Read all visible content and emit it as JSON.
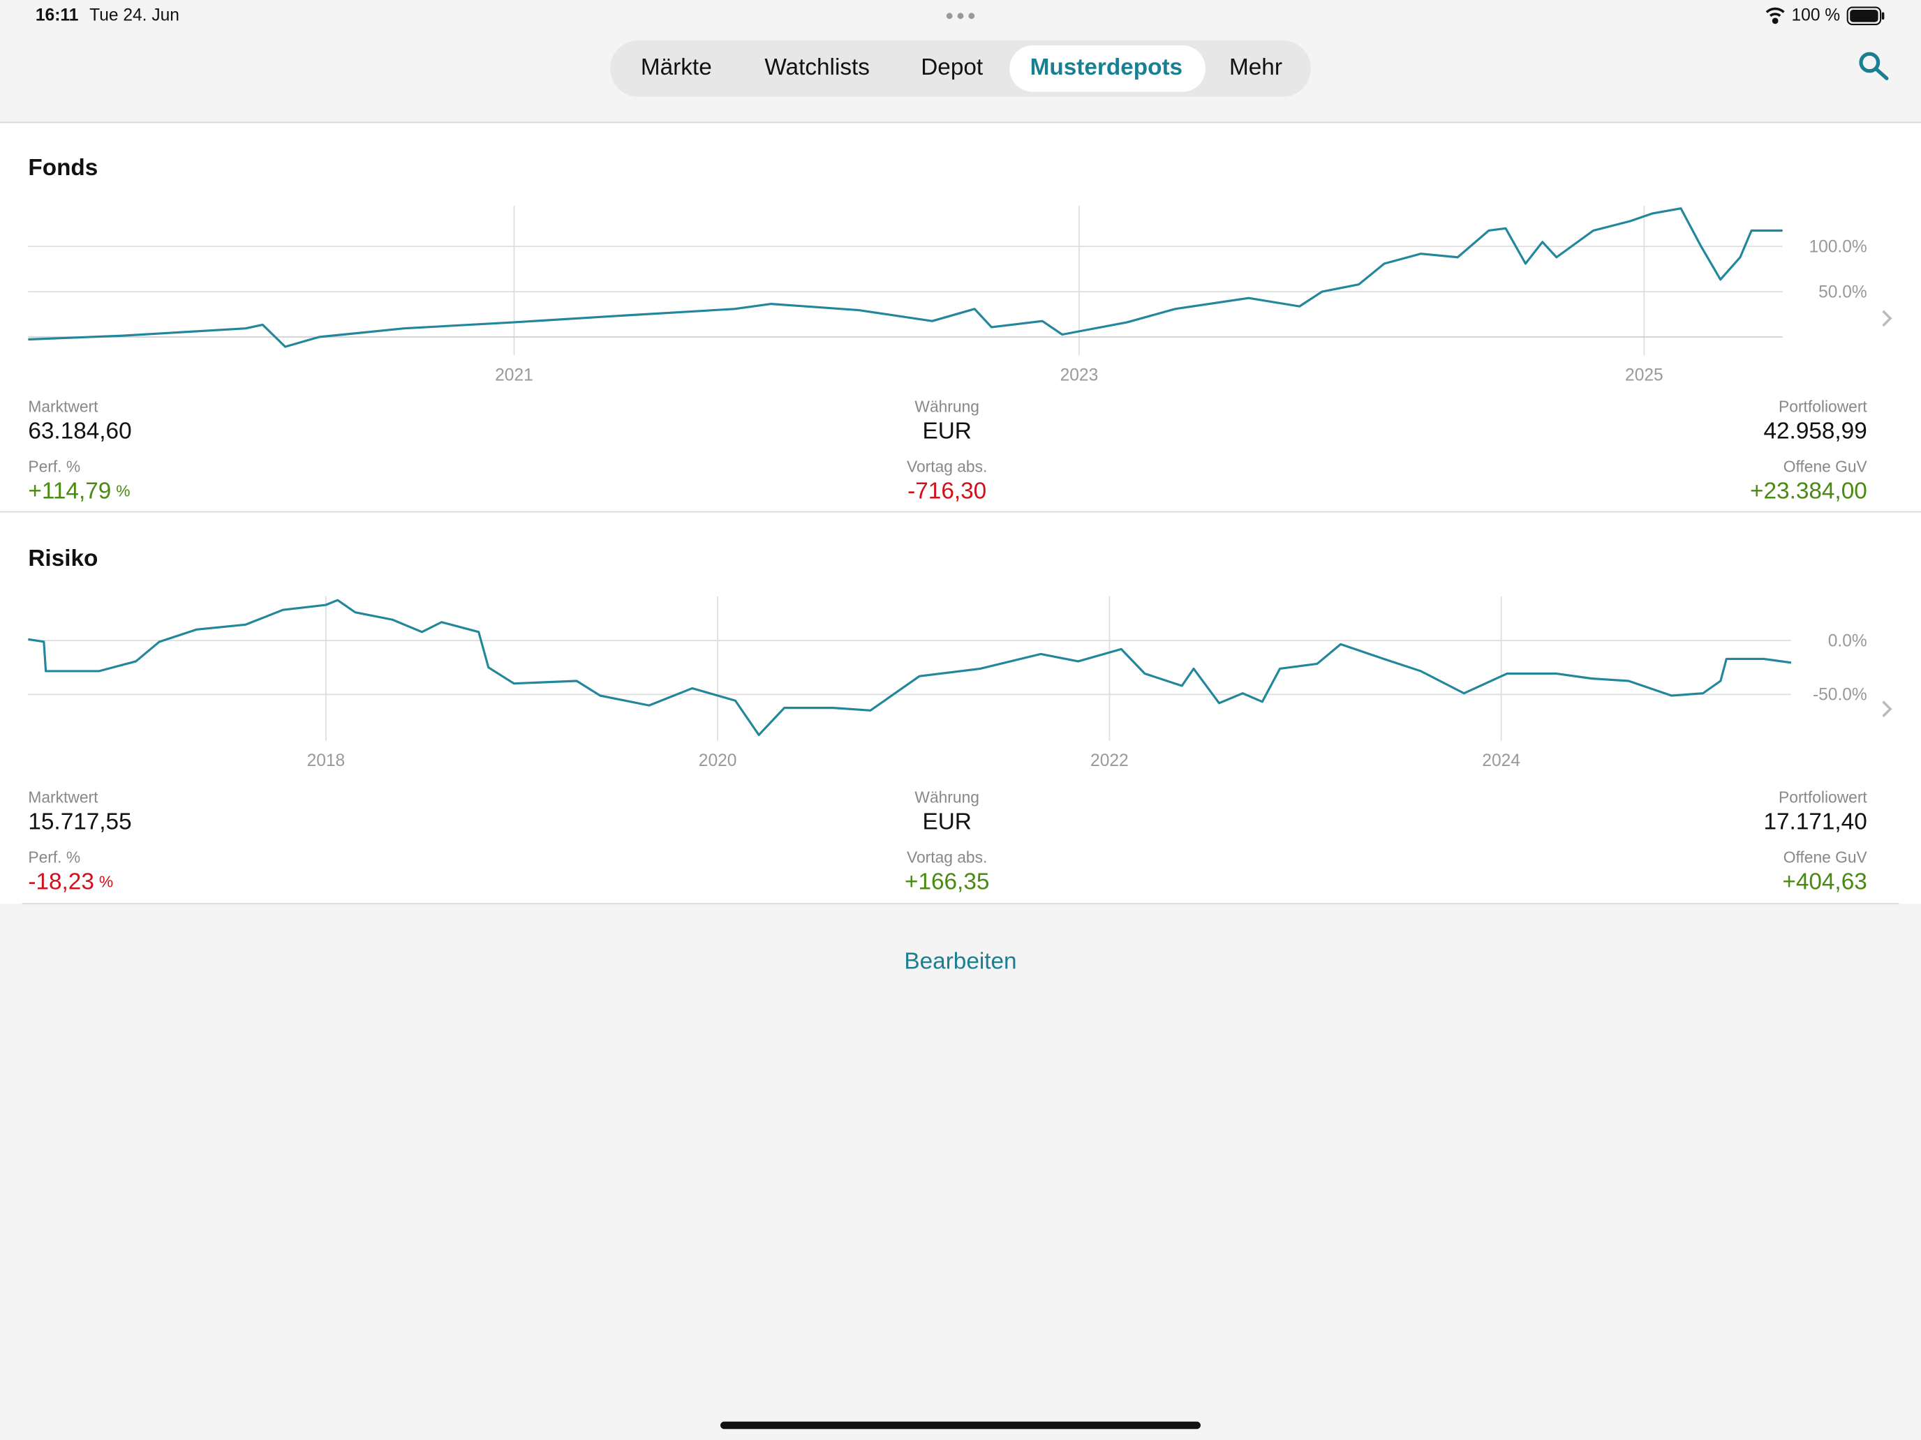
{
  "status_bar": {
    "time": "16:11",
    "date": "Tue 24. Jun",
    "battery": "100 %"
  },
  "tabs": [
    "Märkte",
    "Watchlists",
    "Depot",
    "Musterdepots",
    "Mehr"
  ],
  "active_tab": 3,
  "chart_data": [
    {
      "type": "line",
      "title": "Fonds",
      "color": "#23879c",
      "x": [
        2019.28,
        2019.61,
        2020.05,
        2020.11,
        2020.19,
        2020.31,
        2020.61,
        2021.0,
        2021.35,
        2021.78,
        2021.91,
        2022.22,
        2022.48,
        2022.63,
        2022.69,
        2022.87,
        2022.94,
        2023.17,
        2023.34,
        2023.6,
        2023.78,
        2023.86,
        2023.99,
        2024.08,
        2024.21,
        2024.34,
        2024.45,
        2024.51,
        2024.58,
        2024.64,
        2024.69,
        2024.82,
        2024.95,
        2025.03,
        2025.13,
        2025.2,
        2025.27,
        2025.34,
        2025.38,
        2025.49
      ],
      "values": [
        -2.7,
        1.4,
        9.5,
        13.5,
        -10.8,
        0,
        9.5,
        16.2,
        23,
        31,
        36.5,
        29.7,
        17.6,
        31,
        10.8,
        17.6,
        2.7,
        16.2,
        31,
        43,
        33.8,
        50,
        58,
        81,
        92,
        88,
        117.5,
        120,
        81,
        105,
        88,
        117.5,
        128,
        136.5,
        142,
        101,
        63.5,
        88,
        117.5,
        117.5
      ],
      "xlim": [
        2019.28,
        2025.49
      ],
      "xticks": [
        2021,
        2023,
        2025
      ],
      "ylim": [
        -20,
        145
      ],
      "yticks": [
        {
          "value": 50,
          "label": "50.0%"
        },
        {
          "value": 100,
          "label": "100.0%"
        }
      ],
      "grid": true
    },
    {
      "type": "line",
      "title": "Risiko",
      "color": "#23879c",
      "x": [
        2016.48,
        2016.56,
        2016.57,
        2016.84,
        2017.03,
        2017.15,
        2017.34,
        2017.59,
        2017.78,
        2018.0,
        2018.06,
        2018.15,
        2018.34,
        2018.49,
        2018.59,
        2018.78,
        2018.83,
        2018.96,
        2019.28,
        2019.4,
        2019.65,
        2019.87,
        2020.09,
        2020.21,
        2020.34,
        2020.59,
        2020.78,
        2021.03,
        2021.34,
        2021.65,
        2021.84,
        2022.06,
        2022.18,
        2022.37,
        2022.43,
        2022.56,
        2022.68,
        2022.78,
        2022.87,
        2023.06,
        2023.18,
        2023.4,
        2023.59,
        2023.81,
        2024.03,
        2024.28,
        2024.46,
        2024.65,
        2024.87,
        2025.03,
        2025.12,
        2025.15,
        2025.34,
        2025.48
      ],
      "values": [
        1.1,
        -1.1,
        -28.4,
        -28.4,
        -19.3,
        -1.1,
        10.2,
        14.8,
        28.4,
        33,
        37.5,
        26.1,
        19.3,
        8,
        17,
        8,
        -25,
        -39.8,
        -37.5,
        -51.1,
        -60.2,
        -44.3,
        -55.7,
        -87.5,
        -62.5,
        -62.5,
        -64.8,
        -33,
        -26.1,
        -12.5,
        -19.3,
        -8,
        -30.7,
        -42,
        -26.1,
        -58,
        -48.9,
        -56.8,
        -26.1,
        -21.6,
        -3.4,
        -17,
        -28.4,
        -48.9,
        -30.7,
        -30.7,
        -35.2,
        -37.5,
        -51.1,
        -48.9,
        -37.5,
        -17,
        -17,
        -20.5
      ],
      "xlim": [
        2016.48,
        2025.48
      ],
      "xticks": [
        2018,
        2020,
        2022,
        2024
      ],
      "ylim": [
        -93,
        41
      ],
      "yticks": [
        {
          "value": -50,
          "label": "-50.0%"
        },
        {
          "value": 0,
          "label": "0.0%"
        }
      ],
      "grid": true
    }
  ],
  "portfolios": [
    {
      "fields": [
        {
          "label": "Marktwert",
          "value": "63.184,60"
        },
        {
          "label": "Währung",
          "value": "EUR"
        },
        {
          "label": "Portfoliowert",
          "value": "42.958,99"
        },
        {
          "label": "Perf. %",
          "value": "+114,79",
          "unit": "%"
        },
        {
          "label": "Vortag abs.",
          "value": "-716,30"
        },
        {
          "label": "Offene GuV",
          "value": "+23.384,00"
        }
      ]
    },
    {
      "fields": [
        {
          "label": "Marktwert",
          "value": "15.717,55"
        },
        {
          "label": "Währung",
          "value": "EUR"
        },
        {
          "label": "Portfoliowert",
          "value": "17.171,40"
        },
        {
          "label": "Perf. %",
          "value": "-18,23",
          "unit": "%"
        },
        {
          "label": "Vortag abs.",
          "value": "+166,35"
        },
        {
          "label": "Offene GuV",
          "value": "+404,63"
        }
      ]
    }
  ],
  "edit_button": "Bearbeiten"
}
